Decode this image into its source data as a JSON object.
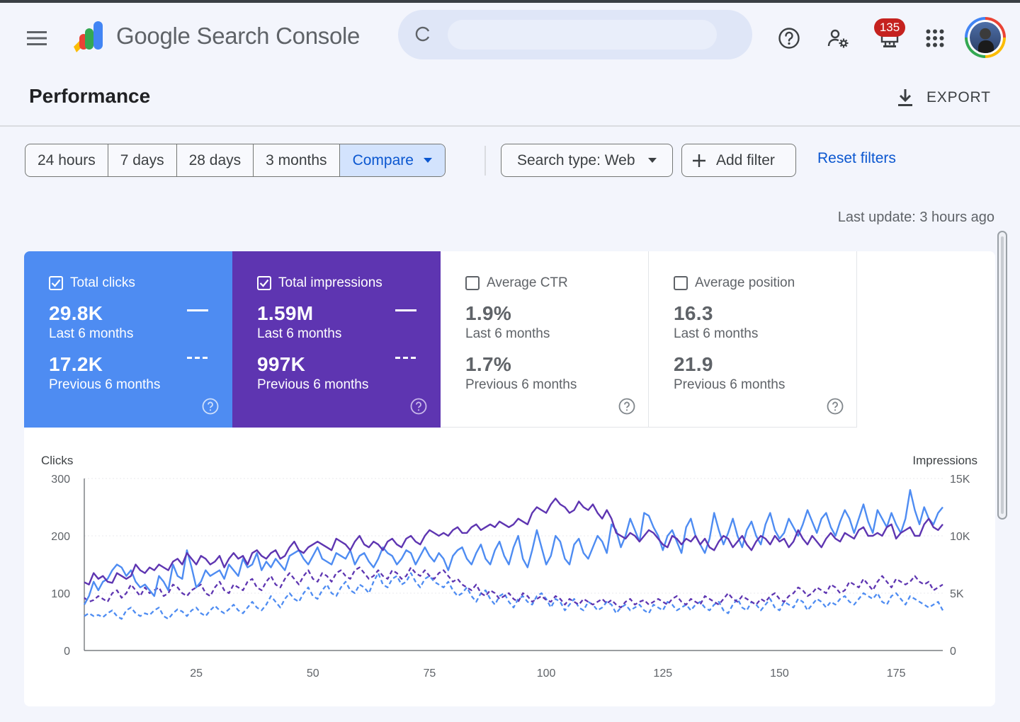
{
  "header": {
    "app_name": "Google Search Console",
    "notifications_count": "135",
    "icons": [
      "menu-icon",
      "search-console-logo",
      "help-icon",
      "manage-users-icon",
      "notifications-icon",
      "apps-grid-icon",
      "avatar"
    ]
  },
  "page": {
    "title": "Performance",
    "export_label": "EXPORT"
  },
  "filters": {
    "date_options": [
      "24 hours",
      "7 days",
      "28 days",
      "3 months"
    ],
    "compare_label": "Compare",
    "search_type_label": "Search type: Web",
    "add_filter_label": "Add filter",
    "reset_label": "Reset filters"
  },
  "last_update": "Last update: 3 hours ago",
  "metrics": [
    {
      "label": "Total clicks",
      "checked": true,
      "value": "29.8K",
      "period": "Last 6 months",
      "prev_value": "17.2K",
      "prev_period": "Previous 6 months",
      "color": "#4e8cf2"
    },
    {
      "label": "Total impressions",
      "checked": true,
      "value": "1.59M",
      "period": "Last 6 months",
      "prev_value": "997K",
      "prev_period": "Previous 6 months",
      "color": "#5e35b1"
    },
    {
      "label": "Average CTR",
      "checked": false,
      "value": "1.9%",
      "period": "Last 6 months",
      "prev_value": "1.7%",
      "prev_period": "Previous 6 months"
    },
    {
      "label": "Average position",
      "checked": false,
      "value": "16.3",
      "period": "Last 6 months",
      "prev_value": "21.9",
      "prev_period": "Previous 6 months"
    }
  ],
  "chart_data": {
    "type": "line",
    "left_axis": {
      "title": "Clicks",
      "ticks": [
        "0",
        "100",
        "200",
        "300"
      ],
      "range": [
        0,
        300
      ]
    },
    "right_axis": {
      "title": "Impressions",
      "ticks": [
        "0",
        "5K",
        "10K",
        "15K"
      ],
      "range": [
        0,
        15000
      ]
    },
    "x_ticks": [
      "25",
      "50",
      "75",
      "100",
      "125",
      "150",
      "175"
    ],
    "x_range": [
      1,
      185
    ],
    "grid": "horizontal",
    "series_style": [
      {
        "metric": "clicks",
        "period": "current",
        "color": "#4e8cf2",
        "dash": false
      },
      {
        "metric": "impressions",
        "period": "current",
        "color": "#5e35b1",
        "dash": false
      },
      {
        "metric": "clicks",
        "period": "previous",
        "color": "#4e8cf2",
        "dash": true
      },
      {
        "metric": "impressions",
        "period": "previous",
        "color": "#5e35b1",
        "dash": true
      }
    ],
    "series": [
      {
        "values": [
          80,
          95,
          120,
          105,
          120,
          125,
          140,
          150,
          145,
          130,
          140,
          120,
          110,
          115,
          105,
          95,
          130,
          120,
          105,
          150,
          130,
          125,
          175,
          145,
          110,
          120,
          140,
          130,
          135,
          140,
          125,
          150,
          140,
          130,
          160,
          145,
          150,
          170,
          140,
          155,
          145,
          160,
          150,
          140,
          165,
          170,
          175,
          160,
          150,
          165,
          180,
          160,
          155,
          150,
          170,
          165,
          160,
          175,
          150,
          165,
          170,
          155,
          145,
          160,
          180,
          170,
          165,
          150,
          160,
          175,
          170,
          150,
          165,
          180,
          165,
          155,
          170,
          160,
          140,
          165,
          175,
          180,
          160,
          150,
          170,
          185,
          160,
          150,
          175,
          190,
          165,
          150,
          180,
          200,
          160,
          145,
          175,
          210,
          180,
          150,
          165,
          200,
          190,
          160,
          150,
          185,
          195,
          170,
          160,
          180,
          200,
          190,
          170,
          220,
          210,
          180,
          200,
          230,
          210,
          190,
          240,
          235,
          215,
          200,
          175,
          200,
          210,
          190,
          170,
          215,
          230,
          200,
          185,
          170,
          195,
          240,
          210,
          185,
          205,
          230,
          200,
          180,
          210,
          225,
          200,
          185,
          220,
          240,
          210,
          195,
          205,
          230,
          215,
          200,
          220,
          245,
          225,
          205,
          230,
          240,
          215,
          200,
          225,
          245,
          230,
          205,
          230,
          255,
          225,
          205,
          245,
          230,
          215,
          240,
          220,
          205,
          230,
          280,
          245,
          220,
          250,
          230,
          220,
          240,
          250
        ],
        "note_current_clicks": true
      },
      {
        "values": [
          119,
          115,
          135,
          125,
          130,
          120,
          118,
          135,
          130,
          125,
          130,
          150,
          140,
          135,
          145,
          140,
          150,
          145,
          140,
          155,
          160,
          150,
          170,
          160,
          150,
          165,
          160,
          150,
          155,
          165,
          145,
          160,
          170,
          160,
          165,
          150,
          170,
          175,
          165,
          160,
          170,
          175,
          160,
          165,
          180,
          190,
          175,
          170,
          180,
          185,
          190,
          185,
          180,
          175,
          195,
          190,
          185,
          175,
          190,
          200,
          185,
          180,
          190,
          185,
          175,
          190,
          195,
          185,
          180,
          195,
          200,
          190,
          185,
          200,
          210,
          205,
          200,
          205,
          200,
          210,
          215,
          205,
          205,
          215,
          220,
          210,
          215,
          220,
          215,
          225,
          220,
          215,
          220,
          230,
          225,
          220,
          240,
          250,
          245,
          240,
          255,
          265,
          255,
          250,
          240,
          245,
          260,
          250,
          245,
          255,
          240,
          230,
          245,
          230,
          205,
          200,
          195,
          205,
          200,
          190,
          200,
          210,
          205,
          195,
          185,
          180,
          200,
          195,
          185,
          195,
          190,
          200,
          185,
          195,
          180,
          175,
          190,
          200,
          195,
          180,
          190,
          200,
          185,
          175,
          190,
          200,
          195,
          185,
          200,
          190,
          195,
          180,
          190,
          210,
          195,
          185,
          200,
          190,
          180,
          195,
          205,
          195,
          190,
          205,
          200,
          195,
          210,
          215,
          200,
          200,
          205,
          200,
          215,
          220,
          195,
          205,
          210,
          215,
          200,
          200,
          220,
          230,
          215,
          210,
          220
        ]
      },
      {
        "values": [
          60,
          65,
          60,
          62,
          58,
          65,
          70,
          60,
          55,
          70,
          75,
          65,
          60,
          65,
          62,
          70,
          75,
          60,
          55,
          65,
          72,
          68,
          60,
          70,
          75,
          65,
          60,
          70,
          78,
          70,
          65,
          72,
          80,
          70,
          65,
          75,
          85,
          75,
          70,
          80,
          95,
          85,
          75,
          90,
          100,
          90,
          85,
          100,
          110,
          95,
          90,
          105,
          115,
          100,
          95,
          110,
          120,
          105,
          100,
          115,
          110,
          100,
          120,
          135,
          115,
          110,
          125,
          130,
          115,
          120,
          135,
          120,
          110,
          125,
          130,
          120,
          115,
          110,
          120,
          105,
          95,
          100,
          110,
          95,
          85,
          100,
          105,
          90,
          80,
          95,
          100,
          85,
          75,
          90,
          95,
          85,
          80,
          95,
          100,
          90,
          75,
          90,
          85,
          70,
          80,
          90,
          75,
          70,
          85,
          80,
          70,
          75,
          85,
          80,
          65,
          75,
          80,
          70,
          75,
          80,
          70,
          65,
          80,
          75,
          70,
          85,
          80,
          70,
          75,
          80,
          70,
          80,
          85,
          75,
          70,
          80,
          85,
          70,
          65,
          80,
          90,
          75,
          70,
          85,
          80,
          70,
          80,
          90,
          75,
          70,
          85,
          80,
          75,
          90,
          85,
          70,
          80,
          90,
          85,
          75,
          85,
          80,
          90,
          95,
          85,
          80,
          90,
          100,
          95,
          90,
          100,
          85,
          80,
          95,
          100,
          90,
          80,
          95,
          90,
          85,
          80,
          75,
          80,
          85,
          70
        ]
      },
      {
        "values": [
          92,
          85,
          88,
          95,
          90,
          85,
          100,
          105,
          92,
          100,
          115,
          105,
          95,
          110,
          100,
          105,
          110,
          95,
          100,
          115,
          110,
          100,
          95,
          105,
          110,
          115,
          100,
          95,
          110,
          120,
          105,
          100,
          115,
          110,
          105,
          120,
          125,
          110,
          105,
          120,
          130,
          115,
          110,
          125,
          135,
          125,
          115,
          130,
          140,
          125,
          120,
          135,
          130,
          120,
          135,
          140,
          130,
          125,
          140,
          145,
          135,
          125,
          130,
          140,
          130,
          125,
          140,
          135,
          125,
          130,
          145,
          135,
          130,
          140,
          130,
          125,
          135,
          140,
          130,
          120,
          125,
          115,
          110,
          105,
          115,
          100,
          95,
          105,
          100,
          90,
          95,
          100,
          90,
          85,
          100,
          95,
          85,
          90,
          95,
          88,
          85,
          95,
          90,
          80,
          90,
          85,
          80,
          90,
          85,
          80,
          85,
          90,
          82,
          88,
          80,
          75,
          85,
          90,
          80,
          85,
          88,
          80,
          85,
          90,
          85,
          80,
          90,
          95,
          85,
          80,
          90,
          85,
          80,
          95,
          90,
          85,
          80,
          90,
          100,
          90,
          85,
          95,
          90,
          85,
          80,
          90,
          85,
          95,
          100,
          90,
          85,
          95,
          100,
          110,
          105,
          95,
          100,
          110,
          105,
          100,
          115,
          110,
          100,
          105,
          120,
          115,
          110,
          125,
          115,
          105,
          120,
          130,
          120,
          110,
          125,
          120,
          115,
          120,
          130,
          120,
          115,
          120,
          105,
          110,
          115
        ]
      }
    ]
  }
}
